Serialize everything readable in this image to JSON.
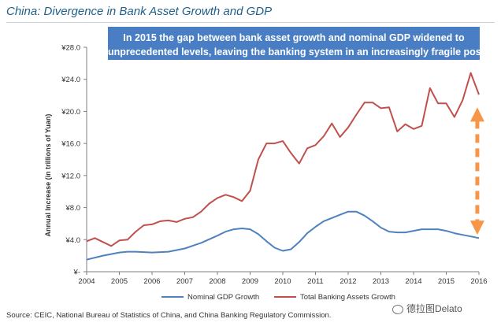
{
  "title": "China: Divergence in Bank Asset Growth and GDP",
  "callout": {
    "line1": "In 2015 the gap between bank asset growth and nominal GDP widened to",
    "line2": "unprecedented levels, leaving the banking system in an increasingly fragile position"
  },
  "source": "Source: CEIC, National Bureau of Statistics of China, and China Banking Regulatory Commission.",
  "watermark": "德拉图Delato",
  "colors": {
    "gdp": "#4f81bd",
    "assets": "#c0504d",
    "arrow": "#f79646",
    "callout": "#4a7ec4",
    "title": "#1f5f8b"
  },
  "chart_data": {
    "type": "line",
    "title": "",
    "xlabel": "",
    "ylabel": "Annual Increase (in trillions of Yuan)",
    "xlim": [
      2004,
      2016
    ],
    "ylim": [
      0,
      28
    ],
    "y_ticks": [
      0,
      4,
      8,
      12,
      16,
      20,
      24,
      28
    ],
    "y_tick_labels": [
      "¥-",
      "¥4.0",
      "¥8.0",
      "¥12.0",
      "¥16.0",
      "¥20.0",
      "¥24.0",
      "¥28.0"
    ],
    "x_ticks": [
      2004,
      2005,
      2006,
      2007,
      2008,
      2009,
      2010,
      2011,
      2012,
      2013,
      2014,
      2015,
      2016
    ],
    "x_tick_labels": [
      "2004",
      "2005",
      "2006",
      "2007",
      "2008",
      "2009",
      "2010",
      "2011",
      "2012",
      "2013",
      "2014",
      "2015",
      "2016"
    ],
    "grid": false,
    "legend_position": "bottom",
    "series": [
      {
        "name": "Nominal GDP Growth",
        "color": "#4f81bd",
        "x": [
          2004,
          2004.5,
          2005,
          2005.25,
          2005.5,
          2006,
          2006.5,
          2007,
          2007.5,
          2008,
          2008.25,
          2008.5,
          2008.75,
          2009,
          2009.25,
          2009.5,
          2009.75,
          2010,
          2010.25,
          2010.5,
          2010.75,
          2011,
          2011.25,
          2011.5,
          2011.75,
          2012,
          2012.25,
          2012.5,
          2012.75,
          2013,
          2013.25,
          2013.5,
          2013.75,
          2014,
          2014.25,
          2014.5,
          2014.75,
          2015,
          2015.25,
          2015.5,
          2015.75,
          2016
        ],
        "y": [
          1.5,
          2.0,
          2.4,
          2.5,
          2.5,
          2.4,
          2.5,
          2.9,
          3.6,
          4.5,
          5.0,
          5.3,
          5.4,
          5.3,
          4.7,
          3.8,
          3.0,
          2.6,
          2.8,
          3.7,
          4.8,
          5.6,
          6.3,
          6.7,
          7.1,
          7.5,
          7.5,
          7.0,
          6.3,
          5.5,
          5.0,
          4.9,
          4.9,
          5.1,
          5.3,
          5.3,
          5.3,
          5.1,
          4.8,
          4.6,
          4.4,
          4.2
        ]
      },
      {
        "name": "Total Banking Assets Growth",
        "color": "#c0504d",
        "x": [
          2004,
          2004.25,
          2004.5,
          2004.75,
          2005,
          2005.25,
          2005.5,
          2005.75,
          2006,
          2006.25,
          2006.5,
          2006.75,
          2007,
          2007.25,
          2007.5,
          2007.75,
          2008,
          2008.25,
          2008.5,
          2008.75,
          2009,
          2009.25,
          2009.5,
          2009.75,
          2010,
          2010.25,
          2010.5,
          2010.75,
          2011,
          2011.25,
          2011.5,
          2011.75,
          2012,
          2012.25,
          2012.5,
          2012.75,
          2013,
          2013.25,
          2013.5,
          2013.75,
          2014,
          2014.25,
          2014.5,
          2014.75,
          2015,
          2015.25,
          2015.5,
          2015.75,
          2016
        ],
        "y": [
          3.8,
          4.2,
          3.7,
          3.2,
          3.9,
          4.0,
          5.0,
          5.8,
          5.9,
          6.3,
          6.4,
          6.2,
          6.6,
          6.8,
          7.5,
          8.5,
          9.2,
          9.6,
          9.3,
          8.8,
          10.1,
          14.0,
          16.0,
          16.0,
          16.3,
          14.8,
          13.5,
          15.4,
          15.8,
          16.9,
          18.5,
          16.8,
          18.0,
          19.6,
          21.1,
          21.1,
          20.4,
          20.5,
          17.5,
          18.4,
          17.8,
          18.2,
          22.9,
          21.0,
          21.0,
          19.3,
          21.4,
          24.8,
          22.1
        ]
      }
    ],
    "annotations": [
      {
        "type": "double-arrow",
        "x": 2015.95,
        "y_from": 20.5,
        "y_to": 4.6,
        "style": "dashed",
        "color": "#f79646"
      }
    ]
  }
}
